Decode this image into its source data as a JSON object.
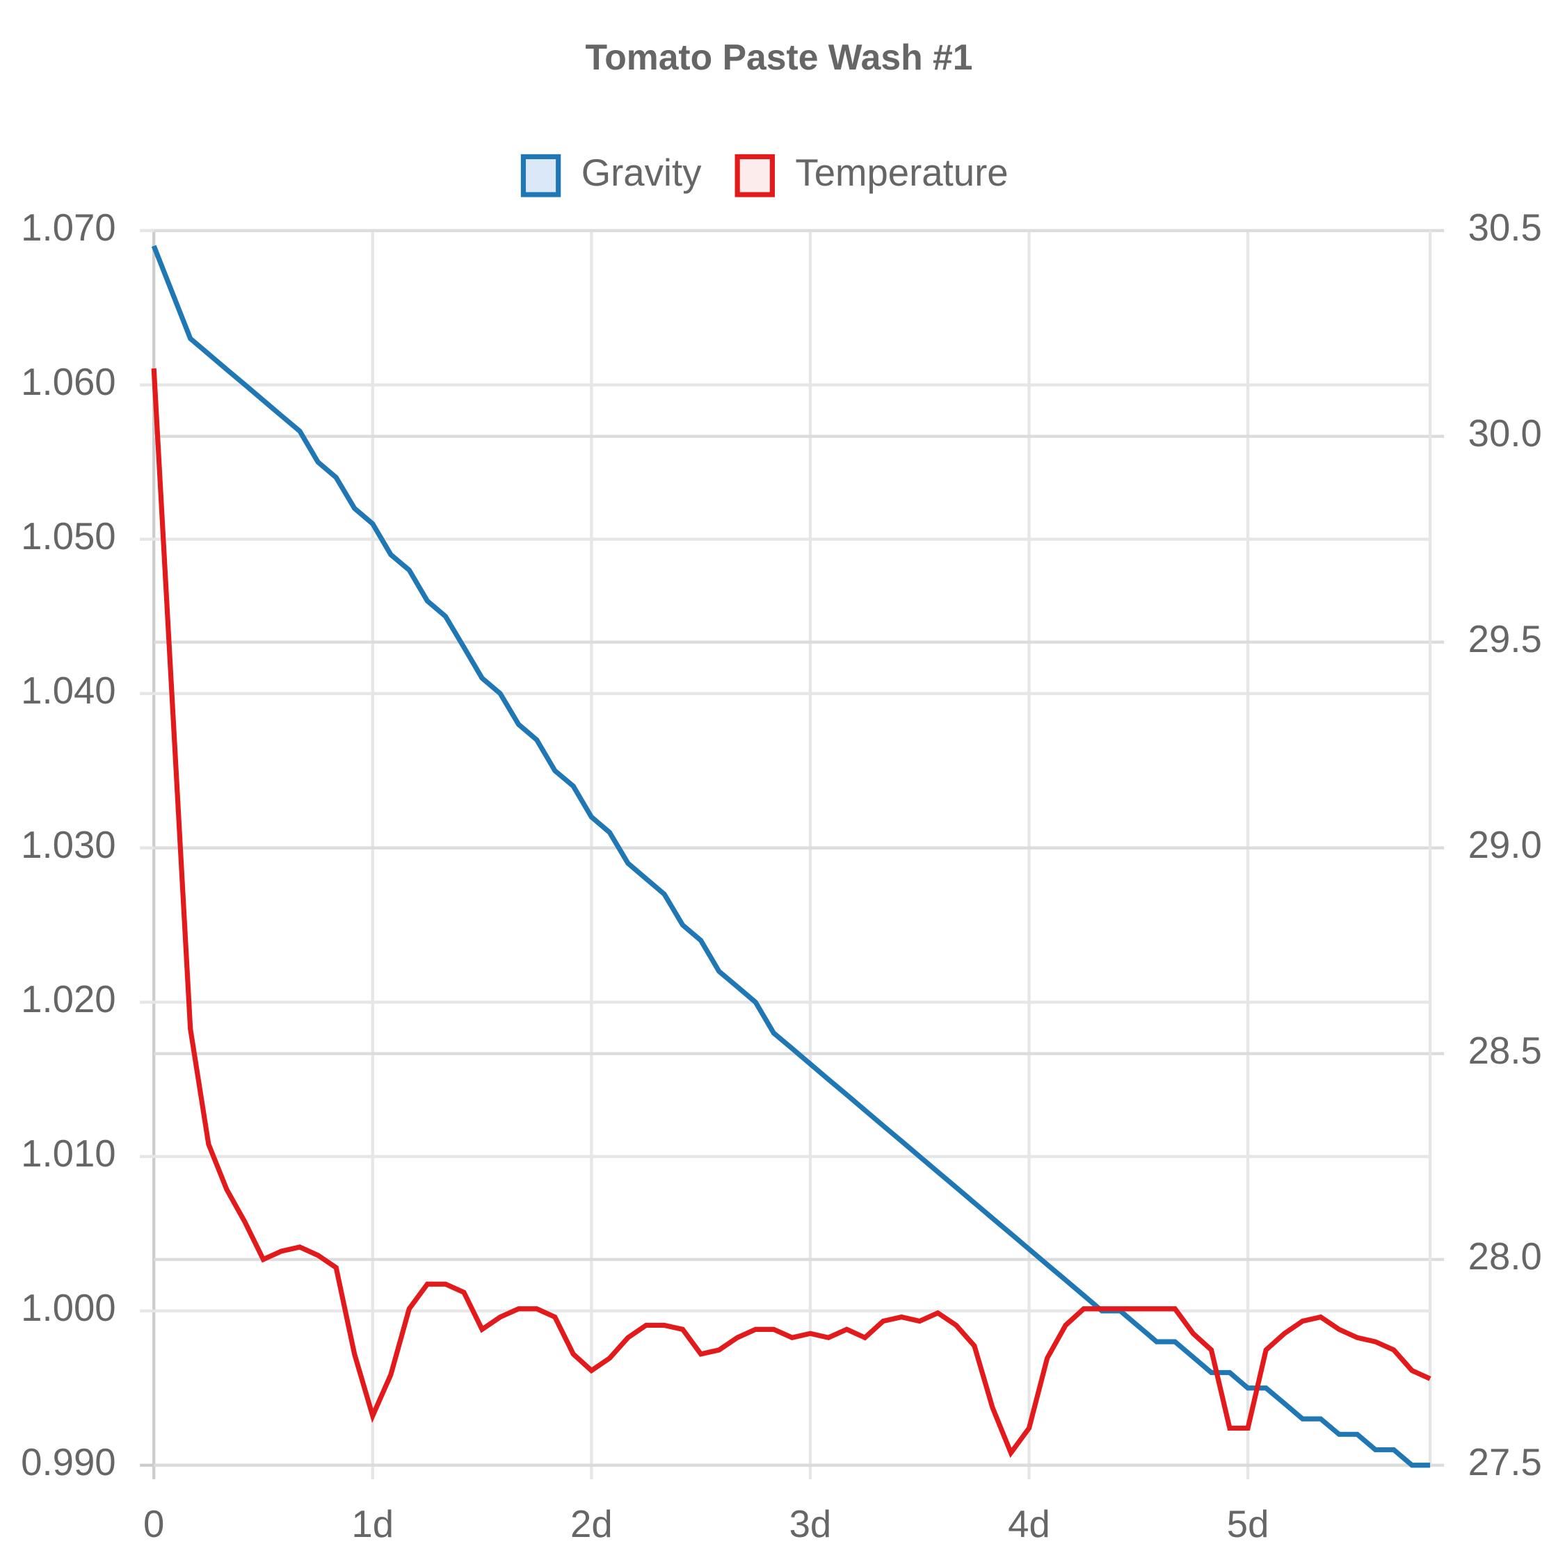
{
  "chart_data": {
    "type": "line",
    "title": "Tomato Paste Wash #1",
    "x": [
      0,
      0.167,
      0.25,
      0.333,
      0.417,
      0.5,
      0.583,
      0.667,
      0.75,
      0.833,
      0.917,
      1,
      1.083,
      1.167,
      1.25,
      1.333,
      1.417,
      1.5,
      1.583,
      1.667,
      1.75,
      1.833,
      1.917,
      2,
      2.083,
      2.167,
      2.25,
      2.333,
      2.417,
      2.5,
      2.583,
      2.667,
      2.75,
      2.833,
      2.917,
      3,
      3.083,
      3.167,
      3.25,
      3.333,
      3.417,
      3.5,
      3.583,
      3.667,
      3.75,
      3.833,
      3.917,
      4,
      4.083,
      4.167,
      4.25,
      4.333,
      4.417,
      4.5,
      4.583,
      4.667,
      4.75,
      4.833,
      4.917,
      5,
      5.083,
      5.167,
      5.25,
      5.333,
      5.417,
      5.5,
      5.583,
      5.667,
      5.75,
      5.833
    ],
    "xlim": [
      0,
      5.833
    ],
    "xticks": [
      0,
      {
        "value": 1,
        "label": "1d"
      },
      {
        "value": 2,
        "label": "2d"
      },
      {
        "value": 3,
        "label": "3d"
      },
      {
        "value": 4,
        "label": "4d"
      },
      {
        "value": 5,
        "label": "5d"
      }
    ],
    "ylim": [
      0.99,
      1.07
    ],
    "yticks": [
      {
        "value": 0.99,
        "label": "0.990"
      },
      {
        "value": 1.0,
        "label": "1.000"
      },
      {
        "value": 1.01,
        "label": "1.010"
      },
      {
        "value": 1.02,
        "label": "1.020"
      },
      {
        "value": 1.03,
        "label": "1.030"
      },
      {
        "value": 1.04,
        "label": "1.040"
      },
      {
        "value": 1.05,
        "label": "1.050"
      },
      {
        "value": 1.06,
        "label": "1.060"
      },
      {
        "value": 1.07,
        "label": "1.070"
      }
    ],
    "y2lim": [
      27.5,
      30.5
    ],
    "y2ticks": [
      27.5,
      {
        "value": 28,
        "label": "28.0"
      },
      28.5,
      {
        "value": 29,
        "label": "29.0"
      },
      29.5,
      {
        "value": 30,
        "label": "30.0"
      },
      30.5
    ],
    "grid": true,
    "legend": "top",
    "series": [
      {
        "name": "Gravity",
        "color": "#1f77b4",
        "fill": "#dbe8f8",
        "values": [
          1.069,
          1.063,
          1.062,
          1.061,
          1.06,
          1.059,
          1.058,
          1.057,
          1.055,
          1.054,
          1.052,
          1.051,
          1.049,
          1.048,
          1.046,
          1.045,
          1.043,
          1.041,
          1.04,
          1.038,
          1.037,
          1.035,
          1.034,
          1.032,
          1.031,
          1.029,
          1.028,
          1.027,
          1.025,
          1.024,
          1.022,
          1.021,
          1.02,
          1.018,
          1.017,
          1.016,
          1.015,
          1.014,
          1.013,
          1.012,
          1.011,
          1.01,
          1.009,
          1.008,
          1.007,
          1.006,
          1.005,
          1.004,
          1.003,
          1.002,
          1.001,
          1.0,
          1.0,
          0.999,
          0.998,
          0.998,
          0.997,
          0.996,
          0.996,
          0.995,
          0.995,
          0.994,
          0.993,
          0.993,
          0.992,
          0.992,
          0.991,
          0.991,
          0.99,
          0.99
        ]
      },
      {
        "name": "Temperature",
        "color": "#e31a1c",
        "fill": "#fdecec",
        "axis": "y2",
        "values": [
          30.165,
          28.56,
          28.28,
          28.17,
          28.09,
          28.0,
          28.02,
          28.03,
          28.01,
          27.98,
          27.77,
          27.62,
          27.72,
          27.88,
          27.94,
          27.94,
          27.92,
          27.83,
          27.86,
          27.88,
          27.88,
          27.86,
          27.77,
          27.73,
          27.76,
          27.81,
          27.84,
          27.84,
          27.83,
          27.77,
          27.78,
          27.81,
          27.83,
          27.83,
          27.81,
          27.82,
          27.81,
          27.83,
          27.81,
          27.85,
          27.86,
          27.85,
          27.87,
          27.84,
          27.79,
          27.64,
          27.53,
          27.59,
          27.76,
          27.84,
          27.88,
          27.88,
          27.88,
          27.88,
          27.88,
          27.88,
          27.82,
          27.78,
          27.59,
          27.59,
          27.78,
          27.82,
          27.85,
          27.86,
          27.83,
          27.81,
          27.8,
          27.78,
          27.73,
          27.71
        ]
      }
    ]
  }
}
